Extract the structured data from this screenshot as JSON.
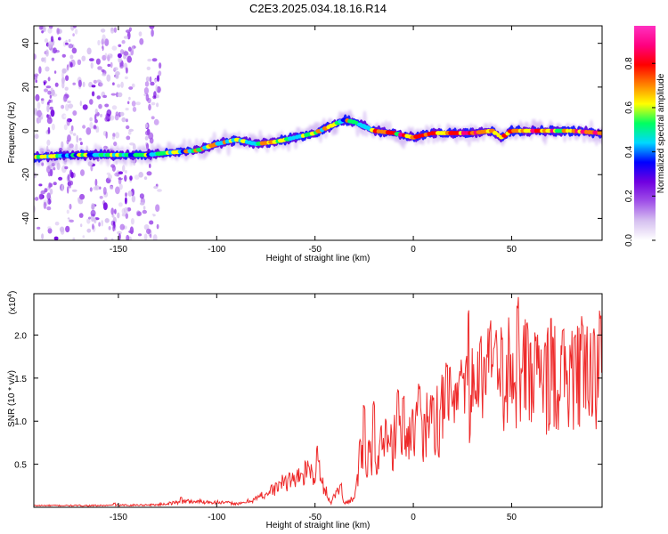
{
  "title": "C2E3.2025.034.18.16.R14",
  "chart_data": [
    {
      "type": "heatmap",
      "xlabel": "Height of straight line (km)",
      "ylabel": "Frequency (Hz)",
      "xlim": [
        -193,
        96
      ],
      "ylim": [
        -50,
        48
      ],
      "xticks": [
        -150,
        -100,
        -50,
        0,
        50
      ],
      "yticks": [
        -40,
        -20,
        0,
        20,
        40
      ],
      "colorbar": {
        "label": "Normalized spectral amplitude",
        "range": [
          0,
          0.97
        ],
        "ticks": [
          0.0,
          0.2,
          0.4,
          0.6,
          0.8
        ],
        "colors": [
          "#ffffff",
          "#d6c0f0",
          "#a050e8",
          "#7000e0",
          "#0000ff",
          "#00d8ff",
          "#00ff60",
          "#ffff00",
          "#ff8000",
          "#ff0000",
          "#ff0080",
          "#ff30c0"
        ]
      },
      "ridge": {
        "x": [
          -193,
          -170,
          -150,
          -135,
          -125,
          -110,
          -100,
          -90,
          -80,
          -70,
          -60,
          -50,
          -40,
          -35,
          -30,
          -25,
          -20,
          -10,
          0,
          10,
          20,
          30,
          40,
          45,
          50,
          60,
          70,
          80,
          96
        ],
        "y": [
          -12,
          -11,
          -11,
          -11,
          -10,
          -9,
          -6,
          -4,
          -6,
          -5,
          -3,
          -1,
          3,
          5,
          4,
          2,
          0,
          -1,
          -3,
          -1,
          -1,
          -1,
          0,
          -3,
          0,
          0,
          0,
          0,
          -1
        ]
      },
      "noise_region_x": [
        -193,
        -130
      ]
    },
    {
      "type": "line",
      "xlabel": "Height of straight line (km)",
      "ylabel": "SNR (10 * v/v)",
      "yscale_label": "(x10",
      "yscale_exponent": "4",
      "xlim": [
        -193,
        96
      ],
      "ylim": [
        0,
        2.48
      ],
      "xticks": [
        -150,
        -100,
        -50,
        0,
        50
      ],
      "yticks": [
        0.5,
        1.0,
        1.5,
        2.0
      ],
      "color": "#ee2a2a",
      "envelope": {
        "x": [
          -193,
          -160,
          -130,
          -115,
          -100,
          -88,
          -80,
          -70,
          -65,
          -60,
          -55,
          -50,
          -45,
          -42,
          -38,
          -35,
          -32,
          -30,
          -28,
          -26,
          -24,
          -20,
          -10,
          0,
          10,
          20,
          30,
          40,
          50,
          60,
          70,
          80,
          90,
          96
        ],
        "y": [
          0.02,
          0.02,
          0.03,
          0.07,
          0.06,
          0.04,
          0.1,
          0.22,
          0.3,
          0.34,
          0.4,
          0.38,
          0.22,
          0.05,
          0.22,
          0.04,
          0.09,
          0.12,
          0.35,
          0.62,
          0.5,
          0.62,
          0.75,
          0.9,
          1.0,
          1.15,
          1.35,
          1.48,
          1.55,
          1.55,
          1.52,
          1.5,
          1.45,
          1.4
        ]
      },
      "peaks": {
        "x": [
          -152,
          -118,
          -68,
          -63,
          -57,
          -49,
          -48,
          -37,
          -27,
          -25,
          -20,
          -14,
          -8,
          -5,
          3,
          10,
          17,
          25,
          28,
          34,
          39,
          41,
          45,
          53,
          58,
          62,
          67,
          70,
          76,
          82,
          86,
          92,
          95
        ],
        "y": [
          0.05,
          0.12,
          0.3,
          0.4,
          0.42,
          0.72,
          0.56,
          0.28,
          0.8,
          1.22,
          1.25,
          1.05,
          1.38,
          1.3,
          1.5,
          1.3,
          1.72,
          1.6,
          2.35,
          2.05,
          2.2,
          1.95,
          2.1,
          2.48,
          2.2,
          2.05,
          2.0,
          2.35,
          2.15,
          2.05,
          2.22,
          2.15,
          2.3
        ]
      }
    }
  ]
}
